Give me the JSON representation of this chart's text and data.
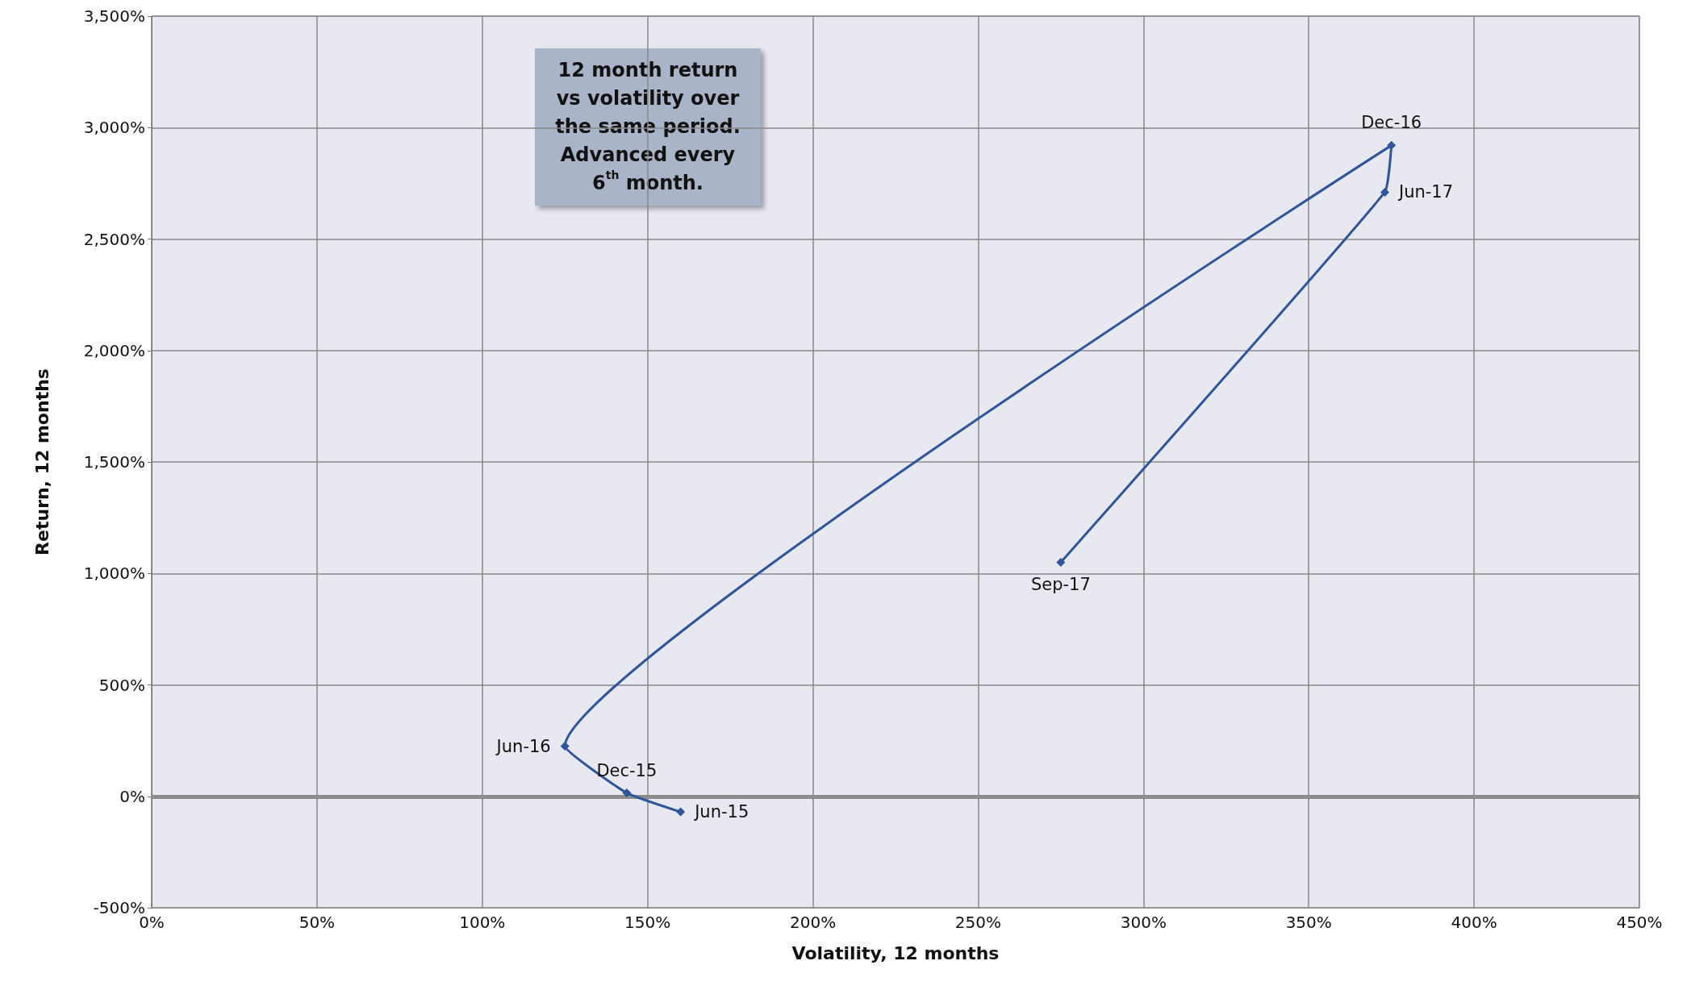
{
  "chart_data": {
    "type": "line",
    "xlabel": "Volatility, 12 months",
    "ylabel": "Return, 12 months",
    "x": [
      160,
      143.7,
      125,
      375,
      373,
      275
    ],
    "series": [
      {
        "color": "#2f559b",
        "values": [
          -70,
          15,
          225,
          2920,
          2710,
          1050
        ],
        "value_labels": [
          "Jun-15",
          "Dec-15",
          "Jun-16",
          "Dec-16",
          "Jun-17",
          "Sep-17"
        ]
      }
    ],
    "xlim": [
      0,
      450
    ],
    "xticks": [
      {
        "value": 0,
        "label": "0%"
      },
      {
        "value": 50,
        "label": "50%"
      },
      {
        "value": 100,
        "label": "100%"
      },
      {
        "value": 150,
        "label": "150%"
      },
      {
        "value": 200,
        "label": "200%"
      },
      {
        "value": 250,
        "label": "250%"
      },
      {
        "value": 300,
        "label": "300%"
      },
      {
        "value": 350,
        "label": "350%"
      },
      {
        "value": 400,
        "label": "400%"
      },
      {
        "value": 450,
        "label": "450%"
      }
    ],
    "ylim": [
      -500,
      3500
    ],
    "yticks": [
      {
        "value": -500,
        "label": "-500%"
      },
      {
        "value": 0,
        "label": "0%"
      },
      {
        "value": 500,
        "label": "500%"
      },
      {
        "value": 1000,
        "label": "1,000%"
      },
      {
        "value": 1500,
        "label": "1,500%"
      },
      {
        "value": 2000,
        "label": "2,000%"
      },
      {
        "value": 2500,
        "label": "2,500%"
      },
      {
        "value": 3000,
        "label": "3,000%"
      },
      {
        "value": 3500,
        "label": "3,500%"
      }
    ],
    "ref_lines": [
      {
        "axis": "y",
        "value": 0,
        "color": "#8c8c8c"
      }
    ],
    "annotations": [
      "12 month return vs volatility over the same period. Advanced every 6$^{th}$ month."
    ],
    "grid": true,
    "marker": "diamond",
    "line_style": "solid"
  }
}
